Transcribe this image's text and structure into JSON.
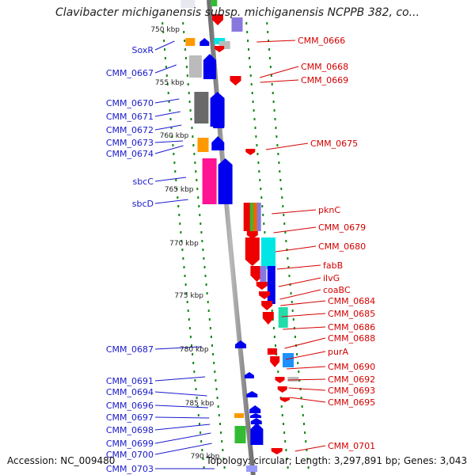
{
  "title": "Clavibacter michiganensis subsp. michiganensis NCPPB 382, co...",
  "footer": {
    "accession": "Accession: NC_009480",
    "topology": "Topology: circular; Length: 3,297,891 bp; Genes: 3,043"
  },
  "colors": {
    "forward_label": "#1a1acc",
    "reverse_label": "#d40000",
    "forward_gene": "#0000ee",
    "reverse_gene": "#ee0000",
    "backbone": "#8c8c8c",
    "tick": "#118811"
  },
  "kbp_ticks": [
    "750 kbp",
    "755 kbp",
    "760 kbp",
    "765 kbp",
    "770 kbp",
    "775 kbp",
    "780 kbp",
    "785 kbp",
    "790 kbp"
  ],
  "left_labels": [
    "SoxR",
    "CMM_0667",
    "CMM_0670",
    "CMM_0671",
    "CMM_0672",
    "CMM_0673",
    "CMM_0674",
    "sbcC",
    "sbcD",
    "CMM_0687",
    "CMM_0691",
    "CMM_0694",
    "CMM_0696",
    "CMM_0697",
    "CMM_0698",
    "CMM_0699",
    "CMM_0700",
    "CMM_0703"
  ],
  "right_labels": [
    "CMM_0666",
    "CMM_0668",
    "CMM_0669",
    "CMM_0675",
    "pknC",
    "CMM_0679",
    "CMM_0680",
    "fabB",
    "ilvG",
    "coaBC",
    "CMM_0684",
    "CMM_0685",
    "CMM_0686",
    "CMM_0688",
    "purA",
    "CMM_0690",
    "CMM_0692",
    "CMM_0693",
    "CMM_0695",
    "CMM_0701"
  ]
}
